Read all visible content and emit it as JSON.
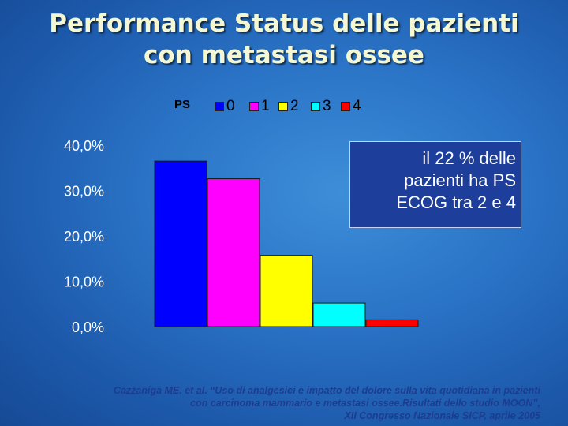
{
  "title": {
    "line1": "Performance Status delle pazienti",
    "line2": "con metastasi ossee"
  },
  "legend": {
    "title": "PS",
    "items": [
      {
        "label": "0",
        "color": "#0000ff"
      },
      {
        "label": "1",
        "color": "#ff00ff"
      },
      {
        "label": "2",
        "color": "#ffff00"
      },
      {
        "label": "3",
        "color": "#00ffff"
      },
      {
        "label": "4",
        "color": "#ff0000"
      }
    ]
  },
  "callout": {
    "line1": "il 22 % delle",
    "line2": "pazienti ha PS",
    "line3": "ECOG tra 2 e 4"
  },
  "citation": {
    "line1": "Cazzaniga ME. et al. “Uso di analgesici e impatto del dolore sulla vita quotidiana in pazienti",
    "line2": "con carcinoma mammario e metastasi ossee.Risultati dello studio MOON”,",
    "line3": "XII Congresso Nazionale SICP, aprile 2005"
  },
  "chart_data": {
    "type": "bar",
    "categories": [
      "0",
      "1",
      "2",
      "3",
      "4"
    ],
    "values": [
      36.5,
      32.6,
      15.7,
      5.2,
      1.5
    ],
    "colors": [
      "#0000ff",
      "#ff00ff",
      "#ffff00",
      "#00ffff",
      "#ff0000"
    ],
    "ylim": [
      0,
      40
    ],
    "yticks": [
      "0,0%",
      "10,0%",
      "20,0%",
      "30,0%",
      "40,0%"
    ],
    "ytick_values": [
      0,
      10,
      20,
      30,
      40
    ],
    "legend_title": "PS",
    "legend_placement": "top",
    "grid": false
  }
}
